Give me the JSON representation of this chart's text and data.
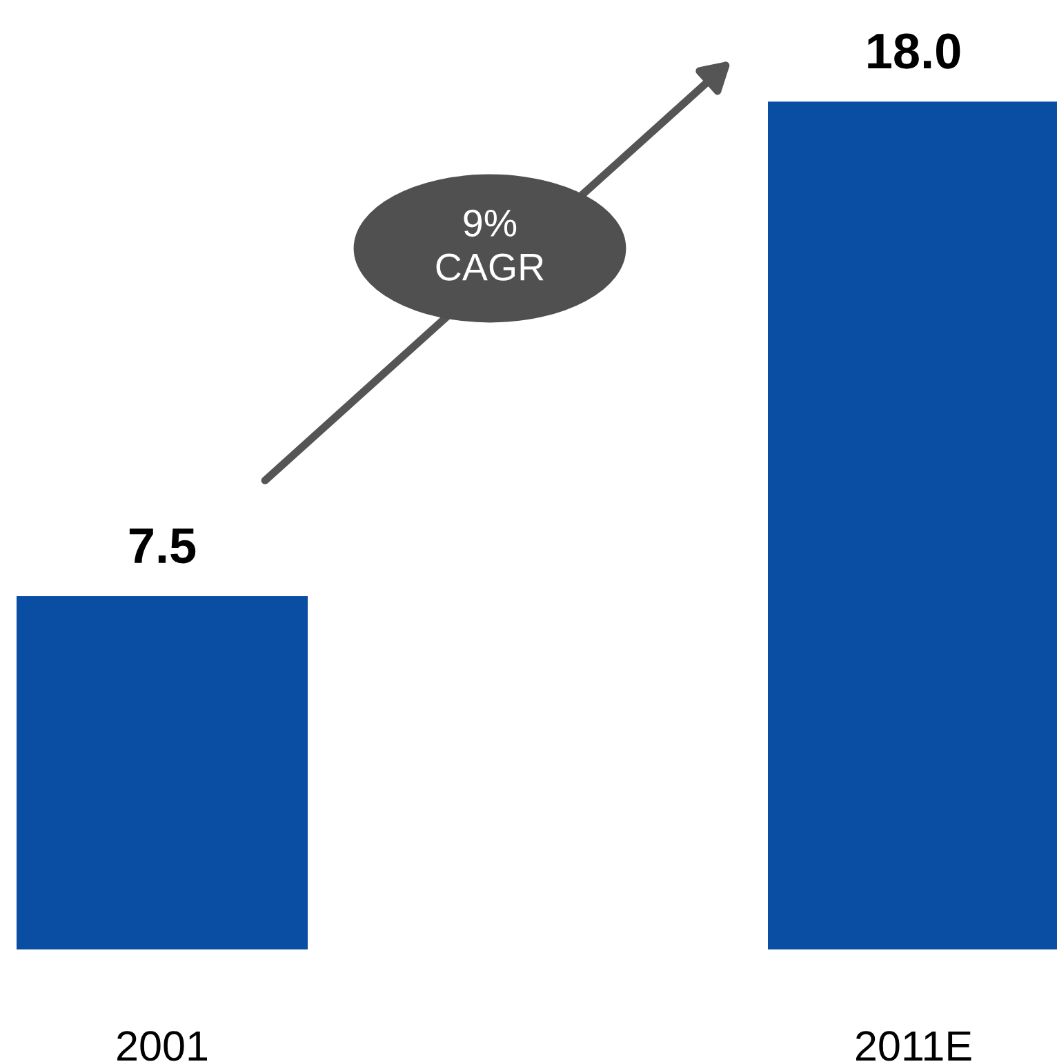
{
  "chart_data": {
    "type": "bar",
    "categories": [
      "2001",
      "2011E"
    ],
    "values": [
      7.5,
      18.0
    ],
    "value_labels": [
      "7.5",
      "18.0"
    ],
    "color": "#0a4ea3",
    "annotations": [
      "9%\nCAGR"
    ],
    "grid": false,
    "legend": false
  }
}
